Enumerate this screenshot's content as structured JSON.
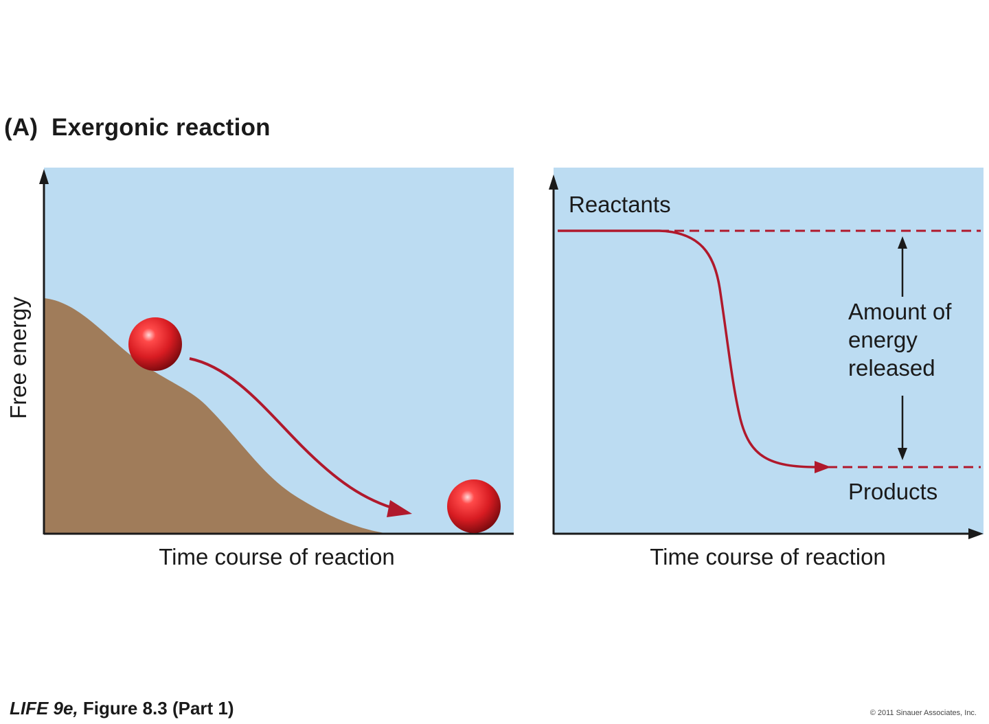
{
  "figure": {
    "title": "(A)  Exergonic reaction"
  },
  "left_panel": {
    "y_axis_label": "Free energy",
    "x_axis_label": "Time course of reaction"
  },
  "right_panel": {
    "x_axis_label": "Time course of reaction",
    "reactants_label": "Reactants",
    "products_label": "Products",
    "energy_label_line1": "Amount of",
    "energy_label_line2": "energy",
    "energy_label_line3": "released"
  },
  "caption": {
    "book": "LIFE 9e,",
    "figure_ref": " Figure 8.3 (Part 1)"
  },
  "copyright": "© 2011 Sinauer Associates, Inc.",
  "colors": {
    "panel_background": "#bcdcf2",
    "hill": "#a07c5a",
    "curve": "#b0192c",
    "axis": "#1a1a1a",
    "ball": "#d81c22"
  }
}
